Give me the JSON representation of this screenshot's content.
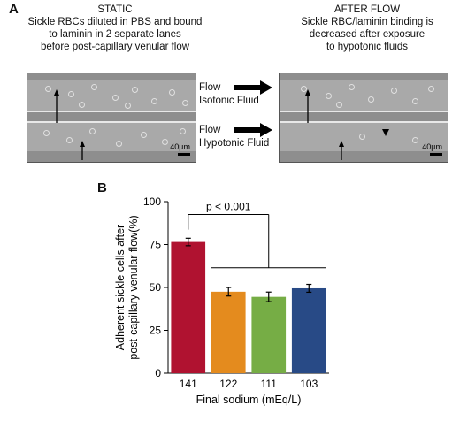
{
  "panel_a": {
    "letter": "A",
    "static_caption": [
      "STATIC",
      "Sickle RBCs diluted in PBS and bound",
      "to laminin in 2 separate lanes",
      "before post-capillary venular flow"
    ],
    "after_caption": [
      "AFTER FLOW",
      "Sickle RBC/laminin binding is",
      "decreased after exposure",
      "to hypotonic fluids"
    ],
    "flow_isotonic": [
      "Flow",
      "Isotonic Fluid"
    ],
    "flow_hypotonic": [
      "Flow",
      "Hypotonic Fluid"
    ],
    "scale_label": "40µm"
  },
  "panel_b": {
    "letter": "B"
  },
  "chart_data": {
    "type": "bar",
    "categories": [
      "141",
      "122",
      "111",
      "103"
    ],
    "values": [
      76.5,
      47.5,
      44.5,
      49.5
    ],
    "errors": [
      2.2,
      2.5,
      2.8,
      2.3
    ],
    "colors": [
      "#b01230",
      "#e48b1e",
      "#76ad45",
      "#284a86"
    ],
    "xlabel": "Final sodium (mEq/L)",
    "ylabel_lines": [
      "Adherent sickle cells after",
      "post-capillary venular flow(%)"
    ],
    "ylim": [
      0,
      100
    ],
    "yticks": [
      0,
      25,
      50,
      75,
      100
    ],
    "annotation": "p < 0.001"
  }
}
